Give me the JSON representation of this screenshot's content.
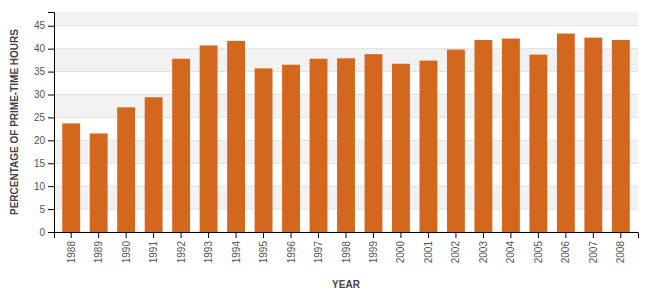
{
  "chart_data": {
    "type": "bar",
    "xlabel": "YEAR",
    "ylabel": "PERCENTAGE OF PRIME-TIME HOURS",
    "categories": [
      "1988",
      "1989",
      "1990",
      "1991",
      "1992",
      "1993",
      "1994",
      "1995",
      "1996",
      "1997",
      "1998",
      "1999",
      "2000",
      "2001",
      "2002",
      "2003",
      "2004",
      "2005",
      "2006",
      "2007",
      "2008"
    ],
    "values": [
      23.7,
      21.5,
      27.2,
      29.4,
      37.8,
      40.7,
      41.7,
      35.7,
      36.5,
      37.8,
      37.9,
      38.8,
      36.7,
      37.4,
      39.8,
      41.9,
      42.2,
      38.7,
      43.3,
      42.4,
      41.9
    ],
    "color": "#d4671e",
    "ylim": [
      0,
      48
    ],
    "yticks": [
      0,
      5,
      10,
      15,
      20,
      25,
      30,
      35,
      40,
      45
    ],
    "grid": true
  }
}
